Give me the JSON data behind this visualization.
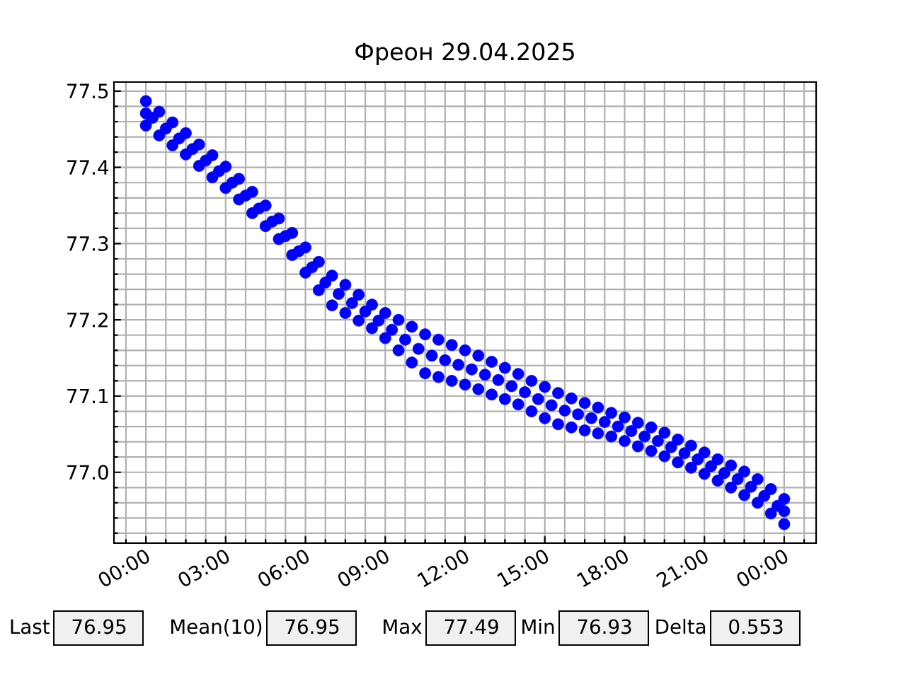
{
  "chart_data": {
    "type": "scatter",
    "title": "Фреон 29.04.2025",
    "x": [
      0,
      0.5,
      1,
      1.5,
      2,
      2.5,
      3,
      3.5,
      4,
      4.5,
      5,
      5.5,
      6,
      6.5,
      7,
      7.5,
      8,
      8.5,
      9,
      9.5,
      10,
      10.5,
      11,
      11.5,
      12,
      12.5,
      13,
      13.5,
      14,
      14.5,
      15,
      15.5,
      16,
      16.5,
      17,
      17.5,
      18,
      18.5,
      19,
      19.5,
      20,
      20.5,
      21,
      21.5,
      22,
      22.5,
      23,
      23.5,
      24,
      0,
      0.5,
      1,
      1.5,
      2,
      2.5,
      3,
      3.5,
      4,
      4.5,
      5,
      5.5,
      6,
      6.5,
      7,
      7.5,
      8,
      8.5,
      9,
      9.5,
      10,
      10.5,
      11,
      11.5,
      12,
      12.5,
      13,
      13.5,
      14,
      14.5,
      15,
      15.5,
      16,
      16.5,
      17,
      17.5,
      18,
      18.5,
      19,
      19.5,
      20,
      20.5,
      21,
      21.5,
      22,
      22.5,
      23,
      23.5,
      24,
      0,
      0.25,
      0.75,
      1.25,
      1.75,
      2.25,
      2.75,
      3.25,
      3.75,
      4.25,
      4.75,
      5.25,
      5.75,
      6.25,
      6.75,
      7.25,
      7.75,
      8.25,
      8.75,
      9.25,
      9.75,
      10.25,
      10.75,
      11.25,
      11.75,
      12.25,
      12.75,
      13.25,
      13.75,
      14.25,
      14.75,
      15.25,
      15.75,
      16.25,
      16.75,
      17.25,
      17.75,
      18.25,
      18.75,
      19.25,
      19.75,
      20.25,
      20.75,
      21.25,
      21.75,
      22.25,
      22.75,
      23.25,
      23.75,
      24
    ],
    "series": [
      {
        "color": "#0000ff",
        "values": [
          77.487,
          77.473,
          77.459,
          77.445,
          77.43,
          77.416,
          77.401,
          77.385,
          77.368,
          77.35,
          77.333,
          77.314,
          77.295,
          77.276,
          77.258,
          77.246,
          77.233,
          77.22,
          77.209,
          77.2,
          77.191,
          77.181,
          77.174,
          77.167,
          77.16,
          77.153,
          77.145,
          77.137,
          77.129,
          77.12,
          77.112,
          77.104,
          77.097,
          77.091,
          77.085,
          77.078,
          77.072,
          77.065,
          77.059,
          77.052,
          77.043,
          77.035,
          77.026,
          77.017,
          77.009,
          77.001,
          76.991,
          76.978,
          76.965,
          77.455,
          77.442,
          77.429,
          77.417,
          77.402,
          77.387,
          77.373,
          77.358,
          77.34,
          77.323,
          77.306,
          77.285,
          77.262,
          77.239,
          77.219,
          77.209,
          77.199,
          77.189,
          77.176,
          77.16,
          77.144,
          77.13,
          77.125,
          77.12,
          77.115,
          77.109,
          77.102,
          77.096,
          77.089,
          77.08,
          77.071,
          77.063,
          77.059,
          77.055,
          77.051,
          77.047,
          77.041,
          77.034,
          77.028,
          77.021,
          77.013,
          77.006,
          76.998,
          76.989,
          76.98,
          76.97,
          76.96,
          76.946,
          76.932,
          77.471,
          77.465,
          77.451,
          77.438,
          77.424,
          77.409,
          77.395,
          77.38,
          77.363,
          77.346,
          77.329,
          77.31,
          77.29,
          77.269,
          77.249,
          77.234,
          77.222,
          77.211,
          77.199,
          77.187,
          77.174,
          77.162,
          77.153,
          77.147,
          77.141,
          77.135,
          77.128,
          77.121,
          77.113,
          77.105,
          77.096,
          77.088,
          77.081,
          77.076,
          77.071,
          77.066,
          77.06,
          77.054,
          77.047,
          77.041,
          77.033,
          77.025,
          77.017,
          77.008,
          76.999,
          76.991,
          76.981,
          76.969,
          76.956,
          76.949
        ]
      }
    ],
    "xlim": [
      -1.2,
      25.2
    ],
    "ylim": [
      76.907,
      77.512
    ],
    "xticks": [
      {
        "value": -0.75,
        "label": null
      },
      {
        "value": 0,
        "label": "00:00"
      },
      {
        "value": 0.75,
        "label": null
      },
      {
        "value": 1.5,
        "label": null
      },
      {
        "value": 2.25,
        "label": null
      },
      {
        "value": 3,
        "label": "03:00"
      },
      {
        "value": 3.75,
        "label": null
      },
      {
        "value": 4.5,
        "label": null
      },
      {
        "value": 5.25,
        "label": null
      },
      {
        "value": 6,
        "label": "06:00"
      },
      {
        "value": 6.75,
        "label": null
      },
      {
        "value": 7.5,
        "label": null
      },
      {
        "value": 8.25,
        "label": null
      },
      {
        "value": 9,
        "label": "09:00"
      },
      {
        "value": 9.75,
        "label": null
      },
      {
        "value": 10.5,
        "label": null
      },
      {
        "value": 11.25,
        "label": null
      },
      {
        "value": 12,
        "label": "12:00"
      },
      {
        "value": 12.75,
        "label": null
      },
      {
        "value": 13.5,
        "label": null
      },
      {
        "value": 14.25,
        "label": null
      },
      {
        "value": 15,
        "label": "15:00"
      },
      {
        "value": 15.75,
        "label": null
      },
      {
        "value": 16.5,
        "label": null
      },
      {
        "value": 17.25,
        "label": null
      },
      {
        "value": 18,
        "label": "18:00"
      },
      {
        "value": 18.75,
        "label": null
      },
      {
        "value": 19.5,
        "label": null
      },
      {
        "value": 20.25,
        "label": null
      },
      {
        "value": 21,
        "label": "21:00"
      },
      {
        "value": 21.75,
        "label": null
      },
      {
        "value": 22.5,
        "label": null
      },
      {
        "value": 23.25,
        "label": null
      },
      {
        "value": 24,
        "label": "00:00"
      },
      {
        "value": 24.75,
        "label": null
      }
    ],
    "yticks": [
      {
        "value": 76.92,
        "label": null
      },
      {
        "value": 76.94,
        "label": null
      },
      {
        "value": 76.96,
        "label": null
      },
      {
        "value": 76.98,
        "label": null
      },
      {
        "value": 77.0,
        "label": "77.0"
      },
      {
        "value": 77.02,
        "label": null
      },
      {
        "value": 77.04,
        "label": null
      },
      {
        "value": 77.06,
        "label": null
      },
      {
        "value": 77.08,
        "label": null
      },
      77.1,
      {
        "value": 77.12,
        "label": null
      },
      {
        "value": 77.14,
        "label": null
      },
      {
        "value": 77.16,
        "label": null
      },
      {
        "value": 77.18,
        "label": null
      },
      77.2,
      {
        "value": 77.22,
        "label": null
      },
      {
        "value": 77.24,
        "label": null
      },
      {
        "value": 77.26,
        "label": null
      },
      {
        "value": 77.28,
        "label": null
      },
      77.3,
      {
        "value": 77.32,
        "label": null
      },
      {
        "value": 77.34,
        "label": null
      },
      {
        "value": 77.36,
        "label": null
      },
      {
        "value": 77.38,
        "label": null
      },
      77.4,
      {
        "value": 77.42,
        "label": null
      },
      {
        "value": 77.44,
        "label": null
      },
      {
        "value": 77.46,
        "label": null
      },
      {
        "value": 77.48,
        "label": null
      },
      77.5
    ],
    "grid": true,
    "annotations": [
      "Last",
      "76.95",
      "Mean(10)",
      "76.95",
      "Max",
      "77.49",
      "Min",
      "76.93",
      "Delta",
      "0.553"
    ]
  }
}
